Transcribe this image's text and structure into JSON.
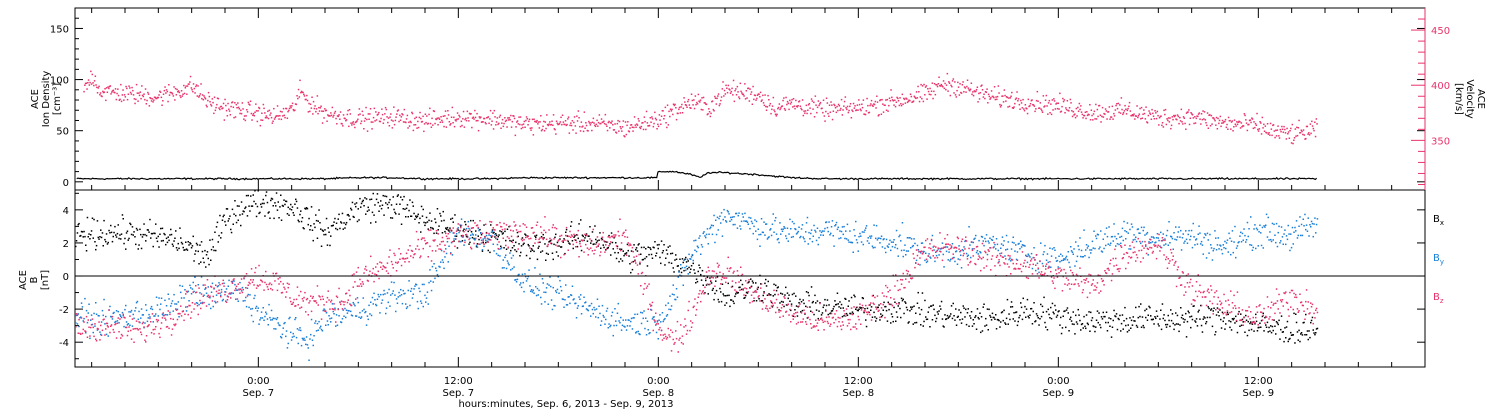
{
  "colors": {
    "bx": "#000000",
    "by": "#1a7fd6",
    "bz": "#e8336b",
    "density": "#000000",
    "velocity": "#e8336b"
  },
  "xlabel": "hours:minutes, Sep.  6, 2013 - Sep.  9, 2013",
  "x_ticks": [
    {
      "hours": 0,
      "time": "0:00",
      "date": "Sep. 7"
    },
    {
      "hours": 12,
      "time": "12:00",
      "date": "Sep. 7"
    },
    {
      "hours": 24,
      "time": "0:00",
      "date": "Sep. 8"
    },
    {
      "hours": 36,
      "time": "12:00",
      "date": "Sep. 8"
    },
    {
      "hours": 48,
      "time": "0:00",
      "date": "Sep. 9"
    },
    {
      "hours": 60,
      "time": "12:00",
      "date": "Sep. 9"
    }
  ],
  "chart_data": [
    {
      "type": "scatter",
      "panel": "plasma",
      "ylabel_left": [
        "ACE",
        "Ion Density",
        "[cm⁻³]"
      ],
      "ylabel_right": [
        "ACE",
        "Velocity",
        "[km/s]"
      ],
      "x_range_hours_rel_sep7": [
        -11,
        70
      ],
      "ylim_left": [
        -8,
        170
      ],
      "ylim_right": [
        305,
        470
      ],
      "left_ticks": [
        "0",
        "50",
        "100",
        "150"
      ],
      "right_ticks": [
        "350",
        "400",
        "450"
      ],
      "series": [
        {
          "name": "Ion Density",
          "axis": "left",
          "x": [
            -10.9,
            -8,
            -4,
            0,
            2,
            4,
            6,
            8,
            10,
            12,
            14,
            16,
            18,
            20,
            22,
            23.9,
            24,
            25,
            26,
            26.5,
            27,
            28,
            30,
            32,
            34,
            36,
            40,
            44,
            48,
            52,
            56,
            60,
            62,
            63.5
          ],
          "y": [
            3,
            3,
            3,
            3,
            3,
            3,
            4,
            4,
            3,
            3,
            3,
            4,
            4,
            4,
            4,
            4,
            10,
            10,
            7,
            4,
            9,
            9,
            7,
            4,
            3,
            3,
            3,
            3,
            3,
            3,
            3,
            3,
            3,
            3
          ]
        },
        {
          "name": "Velocity",
          "axis": "right",
          "x": [
            -10.5,
            -10,
            -9.5,
            -8,
            -6,
            -5,
            -4,
            -3,
            -2,
            0,
            1,
            2,
            2.5,
            3,
            4,
            6,
            8,
            10,
            12,
            14,
            16,
            18,
            20,
            22,
            24,
            25,
            26,
            27,
            28,
            29,
            30,
            31,
            32,
            34,
            36,
            38,
            40,
            41,
            42,
            43,
            44,
            46,
            48,
            50,
            52,
            54,
            56,
            58,
            60,
            61,
            62,
            63.5
          ],
          "y": [
            395,
            410,
            395,
            393,
            390,
            395,
            400,
            385,
            380,
            375,
            372,
            378,
            395,
            385,
            375,
            370,
            372,
            368,
            372,
            370,
            365,
            366,
            366,
            362,
            370,
            378,
            386,
            380,
            396,
            394,
            392,
            380,
            384,
            378,
            380,
            386,
            392,
            402,
            400,
            394,
            390,
            386,
            382,
            376,
            378,
            371,
            372,
            366,
            364,
            358,
            356,
            360
          ]
        }
      ]
    },
    {
      "type": "scatter",
      "panel": "magnetic_field",
      "ylabel": [
        "ACE",
        "B",
        "[nT]"
      ],
      "x_range_hours_rel_sep7": [
        -11,
        70
      ],
      "ylim": [
        -5.5,
        5.2
      ],
      "y_ticks": [
        "-4",
        "-2",
        "0",
        "2",
        "4"
      ],
      "zero_line": true,
      "series": [
        {
          "name": "Bx",
          "legend": "B",
          "sub": "x",
          "x": [
            -11,
            -9,
            -7,
            -5,
            -3,
            -2,
            -1,
            0,
            2,
            3,
            4,
            6,
            8,
            10,
            12,
            14,
            16,
            18,
            20,
            22,
            24,
            26,
            28,
            30,
            32,
            34,
            36,
            38,
            40,
            42,
            44,
            46,
            48,
            50,
            52,
            54,
            56,
            58,
            60,
            62,
            63.5
          ],
          "y": [
            2.5,
            2.7,
            2.5,
            2.2,
            1.2,
            3.5,
            4.2,
            4.5,
            4.3,
            3.4,
            2.6,
            4.2,
            4.4,
            3.4,
            2.8,
            2.4,
            1.8,
            2,
            2.6,
            1.2,
            1.5,
            0.6,
            -1.2,
            -0.5,
            -1.7,
            -1.8,
            -2,
            -1.9,
            -2.2,
            -2.4,
            -2.6,
            -2,
            -2.4,
            -2.7,
            -2.6,
            -2.5,
            -2.6,
            -2.4,
            -3,
            -3.2,
            -3.1
          ]
        },
        {
          "name": "By",
          "legend": "B",
          "sub": "y",
          "x": [
            -11,
            -9,
            -7,
            -5,
            -4,
            -3,
            -2,
            -1,
            0,
            2,
            3,
            4,
            6,
            8,
            10,
            12,
            14,
            16,
            18,
            20,
            22,
            24,
            25,
            26,
            28,
            30,
            32,
            34,
            36,
            38,
            40,
            42,
            44,
            46,
            48,
            50,
            52,
            54,
            56,
            58,
            60,
            62,
            63.5
          ],
          "y": [
            -2.5,
            -2.6,
            -2.2,
            -1.8,
            -0.8,
            -1.2,
            -1,
            -0.8,
            -2.2,
            -3.5,
            -3.8,
            -2.5,
            -2,
            -1.2,
            -1,
            2.8,
            2.2,
            -0.4,
            -1.2,
            -2,
            -2.8,
            -2.6,
            -1,
            1.5,
            3.8,
            3,
            2.6,
            2.8,
            2.4,
            2.2,
            1.4,
            1.6,
            2,
            1.4,
            1,
            2,
            2.6,
            2.4,
            2.4,
            1.8,
            2.8,
            2.5,
            3.2
          ]
        },
        {
          "name": "Bz",
          "legend": "B",
          "sub": "z",
          "x": [
            -11,
            -9,
            -7,
            -5,
            -4,
            -3,
            -2,
            -1,
            0,
            1,
            2,
            3,
            4,
            5,
            6,
            8,
            10,
            12,
            14,
            16,
            18,
            20,
            22,
            24,
            25,
            26,
            27,
            28,
            30,
            32,
            34,
            36,
            38,
            40,
            42,
            44,
            46,
            48,
            50,
            52,
            54,
            56,
            58,
            60,
            62,
            63.5
          ],
          "y": [
            -3,
            -3,
            -3.3,
            -2.2,
            -1.5,
            -1,
            -0.8,
            -0.3,
            0,
            -0.4,
            -1.2,
            -1.6,
            -1.5,
            -1.5,
            -0.2,
            0.8,
            1.8,
            2.5,
            2.5,
            2.8,
            2.3,
            1.8,
            2.5,
            -3,
            -4,
            -2.2,
            0.2,
            0.3,
            -1.2,
            -2.2,
            -2.8,
            -2.4,
            -1,
            1.6,
            1.8,
            1,
            0.8,
            0,
            -0.6,
            1.5,
            2,
            -0.8,
            -1.8,
            -2.5,
            -1.2,
            -2
          ]
        }
      ]
    }
  ]
}
